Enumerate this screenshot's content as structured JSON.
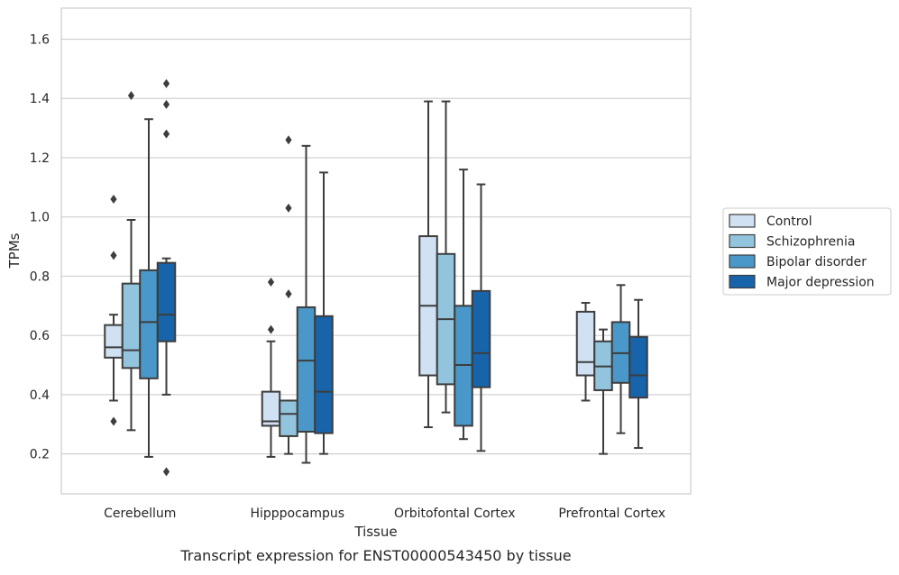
{
  "caption": "Transcript expression for ENST00000543450 by tissue",
  "chart_data": {
    "type": "boxplot",
    "xlabel": "Tissue",
    "ylabel": "TPMs",
    "ylim": [
      0.065,
      1.705
    ],
    "yticks": [
      0.2,
      0.4,
      0.6,
      0.8,
      1.0,
      1.2,
      1.4,
      1.6
    ],
    "ytick_labels": [
      "0.2",
      "0.4",
      "0.6",
      "0.8",
      "1.0",
      "1.2",
      "1.4",
      "1.6"
    ],
    "grid": "horizontal",
    "legend_position": "right",
    "categories": [
      "Cerebellum",
      "Hipppocampus",
      "Orbitofontal Cortex",
      "Prefrontal Cortex"
    ],
    "series": [
      {
        "name": "Control",
        "color": "#cfe1f2",
        "boxes": [
          {
            "whislo": 0.38,
            "q1": 0.525,
            "med": 0.56,
            "q3": 0.635,
            "whishi": 0.67,
            "fliers": [
              0.31,
              0.87,
              1.06
            ]
          },
          {
            "whislo": 0.19,
            "q1": 0.295,
            "med": 0.31,
            "q3": 0.41,
            "whishi": 0.58,
            "fliers": [
              0.62,
              0.78
            ]
          },
          {
            "whislo": 0.29,
            "q1": 0.465,
            "med": 0.7,
            "q3": 0.935,
            "whishi": 1.39,
            "fliers": []
          },
          {
            "whislo": 0.38,
            "q1": 0.465,
            "med": 0.51,
            "q3": 0.68,
            "whishi": 0.71,
            "fliers": []
          }
        ]
      },
      {
        "name": "Schizophrenia",
        "color": "#93c4de",
        "boxes": [
          {
            "whislo": 0.28,
            "q1": 0.49,
            "med": 0.55,
            "q3": 0.775,
            "whishi": 0.99,
            "fliers": [
              1.41
            ]
          },
          {
            "whislo": 0.2,
            "q1": 0.26,
            "med": 0.335,
            "q3": 0.38,
            "whishi": 0.38,
            "fliers": [
              0.74,
              1.03,
              1.26
            ]
          },
          {
            "whislo": 0.34,
            "q1": 0.435,
            "med": 0.655,
            "q3": 0.875,
            "whishi": 1.39,
            "fliers": []
          },
          {
            "whislo": 0.2,
            "q1": 0.415,
            "med": 0.495,
            "q3": 0.58,
            "whishi": 0.62,
            "fliers": []
          }
        ]
      },
      {
        "name": "Bipolar disorder",
        "color": "#4a98c9",
        "boxes": [
          {
            "whislo": 0.19,
            "q1": 0.455,
            "med": 0.645,
            "q3": 0.82,
            "whishi": 1.33,
            "fliers": []
          },
          {
            "whislo": 0.17,
            "q1": 0.275,
            "med": 0.515,
            "q3": 0.695,
            "whishi": 1.24,
            "fliers": []
          },
          {
            "whislo": 0.25,
            "q1": 0.295,
            "med": 0.5,
            "q3": 0.7,
            "whishi": 1.16,
            "fliers": []
          },
          {
            "whislo": 0.27,
            "q1": 0.44,
            "med": 0.54,
            "q3": 0.645,
            "whishi": 0.77,
            "fliers": []
          }
        ]
      },
      {
        "name": "Major depression",
        "color": "#1764ab",
        "boxes": [
          {
            "whislo": 0.4,
            "q1": 0.58,
            "med": 0.67,
            "q3": 0.845,
            "whishi": 0.86,
            "fliers": [
              0.14,
              1.28,
              1.38,
              1.45
            ]
          },
          {
            "whislo": 0.2,
            "q1": 0.27,
            "med": 0.41,
            "q3": 0.665,
            "whishi": 1.15,
            "fliers": []
          },
          {
            "whislo": 0.21,
            "q1": 0.425,
            "med": 0.54,
            "q3": 0.75,
            "whishi": 1.11,
            "fliers": []
          },
          {
            "whislo": 0.22,
            "q1": 0.39,
            "med": 0.465,
            "q3": 0.595,
            "whishi": 0.72,
            "fliers": []
          }
        ]
      }
    ]
  }
}
